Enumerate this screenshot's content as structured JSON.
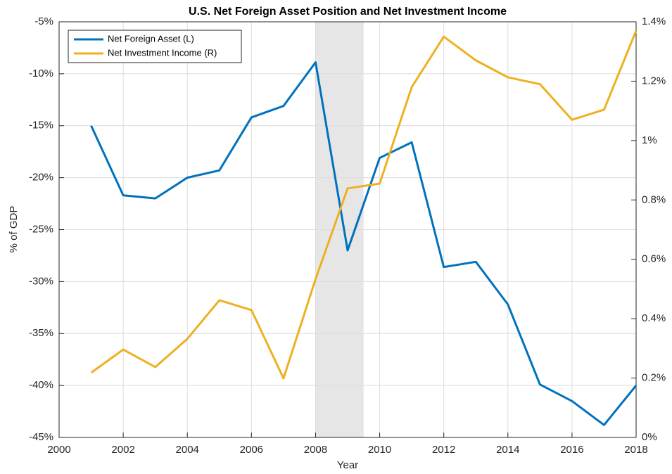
{
  "chart_data": {
    "type": "line",
    "title": "U.S. Net Foreign Asset Position and Net Investment Income",
    "xlabel": "Year",
    "ylabel": "% of GDP",
    "x": [
      2001,
      2002,
      2003,
      2004,
      2005,
      2006,
      2007,
      2008,
      2009,
      2010,
      2011,
      2012,
      2013,
      2014,
      2015,
      2016,
      2017,
      2018
    ],
    "series": [
      {
        "name": "Net Foreign Asset (L)",
        "color": "#0072BD",
        "axis": "y",
        "values": [
          -15.0,
          -21.7,
          -22.0,
          -20.0,
          -19.3,
          -14.2,
          -13.1,
          -8.9,
          -27.0,
          -18.1,
          -16.6,
          -28.6,
          -28.1,
          -32.2,
          -39.9,
          -41.5,
          -43.8,
          -40.0
        ]
      },
      {
        "name": "Net Investment Income (R)",
        "color": "#EDB120",
        "axis": "y2",
        "values": [
          0.218,
          0.296,
          0.237,
          0.332,
          0.462,
          0.429,
          0.199,
          0.533,
          0.839,
          0.855,
          1.18,
          1.35,
          1.27,
          1.213,
          1.19,
          1.07,
          1.104,
          1.37
        ]
      }
    ],
    "shade": [
      2008,
      2009.5
    ],
    "xlim": [
      2000,
      2018
    ],
    "xticks": [
      2000,
      2002,
      2004,
      2006,
      2008,
      2010,
      2012,
      2014,
      2016,
      2018
    ],
    "ylim": [
      -45,
      -5
    ],
    "yticks": [
      {
        "value": -45,
        "label": "-45%"
      },
      {
        "value": -40,
        "label": "-40%"
      },
      {
        "value": -35,
        "label": "-35%"
      },
      {
        "value": -30,
        "label": "-30%"
      },
      {
        "value": -25,
        "label": "-25%"
      },
      {
        "value": -20,
        "label": "-20%"
      },
      {
        "value": -15,
        "label": "-15%"
      },
      {
        "value": -10,
        "label": "-10%"
      },
      {
        "value": -5,
        "label": "-5%"
      }
    ],
    "y2lim": [
      0,
      1.4
    ],
    "y2ticks": [
      {
        "value": 0,
        "label": "0%"
      },
      {
        "value": 0.2,
        "label": "0.2%"
      },
      {
        "value": 0.4,
        "label": "0.4%"
      },
      {
        "value": 0.6,
        "label": "0.6%"
      },
      {
        "value": 0.8,
        "label": "0.8%"
      },
      {
        "value": 1,
        "label": "1%"
      },
      {
        "value": 1.2,
        "label": "1.2%"
      },
      {
        "value": 1.4,
        "label": "1.4%"
      }
    ],
    "grid": true,
    "legend": "upper-left"
  }
}
